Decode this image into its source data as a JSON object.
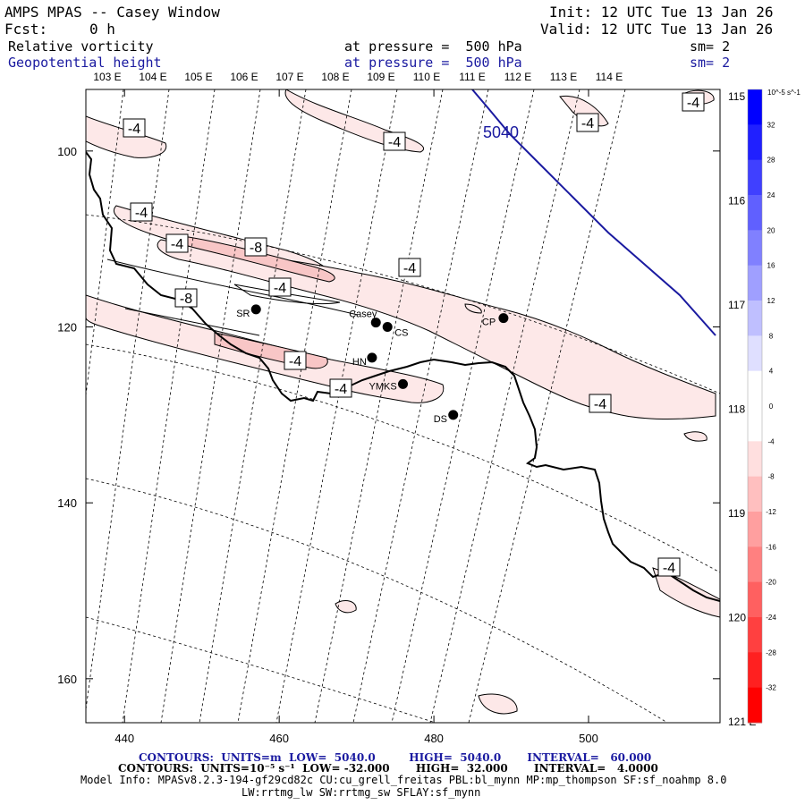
{
  "header": {
    "title": "AMPS MPAS -- Casey Window",
    "init": "Init: 12 UTC Tue 13 Jan 26",
    "fcst_label": "Fcst:",
    "fcst_value": "0 h",
    "valid": "Valid: 12 UTC Tue 13 Jan 26",
    "field1": "Relative vorticity",
    "field1_level": "at pressure =  500 hPa",
    "field1_sm": "sm= 2",
    "field2": "Geopotential height",
    "field2_level": "at pressure =  500 hPa",
    "field2_sm": "sm= 2"
  },
  "colors": {
    "height_contour": "#1a1aa0",
    "coast": "#000000",
    "vort_fill_light": "#fde8e8",
    "vort_fill_medium": "#f8c6c6"
  },
  "chart_data": {
    "type": "contour_map",
    "title": "Relative vorticity (10^-5 s^-1) and Geopotential height (m) at 500 hPa",
    "xlim": [
      435,
      517
    ],
    "ylim": [
      165,
      93
    ],
    "x_ticks": [
      440,
      460,
      480,
      500
    ],
    "y_ticks": [
      100,
      120,
      140,
      160
    ],
    "lon_labels_top": [
      "103 E",
      "104 E",
      "105 E",
      "106 E",
      "107 E",
      "108 E",
      "109 E",
      "110 E",
      "111 E",
      "112 E",
      "113 E",
      "114 E"
    ],
    "lon_labels_right": [
      "115 E",
      "116 E",
      "117 E",
      "118 E",
      "119 E",
      "120 E",
      "121 E"
    ],
    "height_contour_labels": [
      "5040"
    ],
    "vorticity_labels": [
      "-4",
      "-4",
      "-4",
      "-4",
      "-8",
      "-4",
      "-4",
      "-4",
      "-4",
      "-8",
      "-4",
      "-4",
      "-4",
      "-4"
    ],
    "stations": [
      {
        "name": "Casey",
        "x": 472.5,
        "y": 119.5
      },
      {
        "name": "CS",
        "x": 474.0,
        "y": 120.0
      },
      {
        "name": "SR",
        "x": 457.0,
        "y": 118.0
      },
      {
        "name": "HN",
        "x": 472.0,
        "y": 123.5
      },
      {
        "name": "YMKS",
        "x": 476.0,
        "y": 126.5
      },
      {
        "name": "DS",
        "x": 482.5,
        "y": 130.0
      },
      {
        "name": "CP",
        "x": 489.0,
        "y": 119.0
      }
    ],
    "colorbar": {
      "units": "10^-5 s^-1",
      "labels": [
        "32",
        "28",
        "24",
        "20",
        "16",
        "12",
        "8",
        "4",
        "0",
        "-4",
        "-8",
        "-12",
        "-16",
        "-20",
        "-24",
        "-28",
        "-32"
      ]
    }
  },
  "footer": {
    "contours1": "CONTOURS:  UNITS=m  LOW=  5040.0         HIGH=  5040.0       INTERVAL=   60.000",
    "contours2": "CONTOURS:  UNITS=10⁻⁵ s⁻¹  LOW= -32.000       HIGH=  32.000       INTERVAL=   4.0000",
    "model_info": "Model Info: MPASv8.2.3-194-gf29cd82c CU:cu_grell_freitas PBL:bl_mynn MP:mp_thompson SF:sf_noahmp 8.0",
    "model_info2": "LW:rrtmg_lw SW:rrtmg_sw SFLAY:sf_mynn"
  }
}
